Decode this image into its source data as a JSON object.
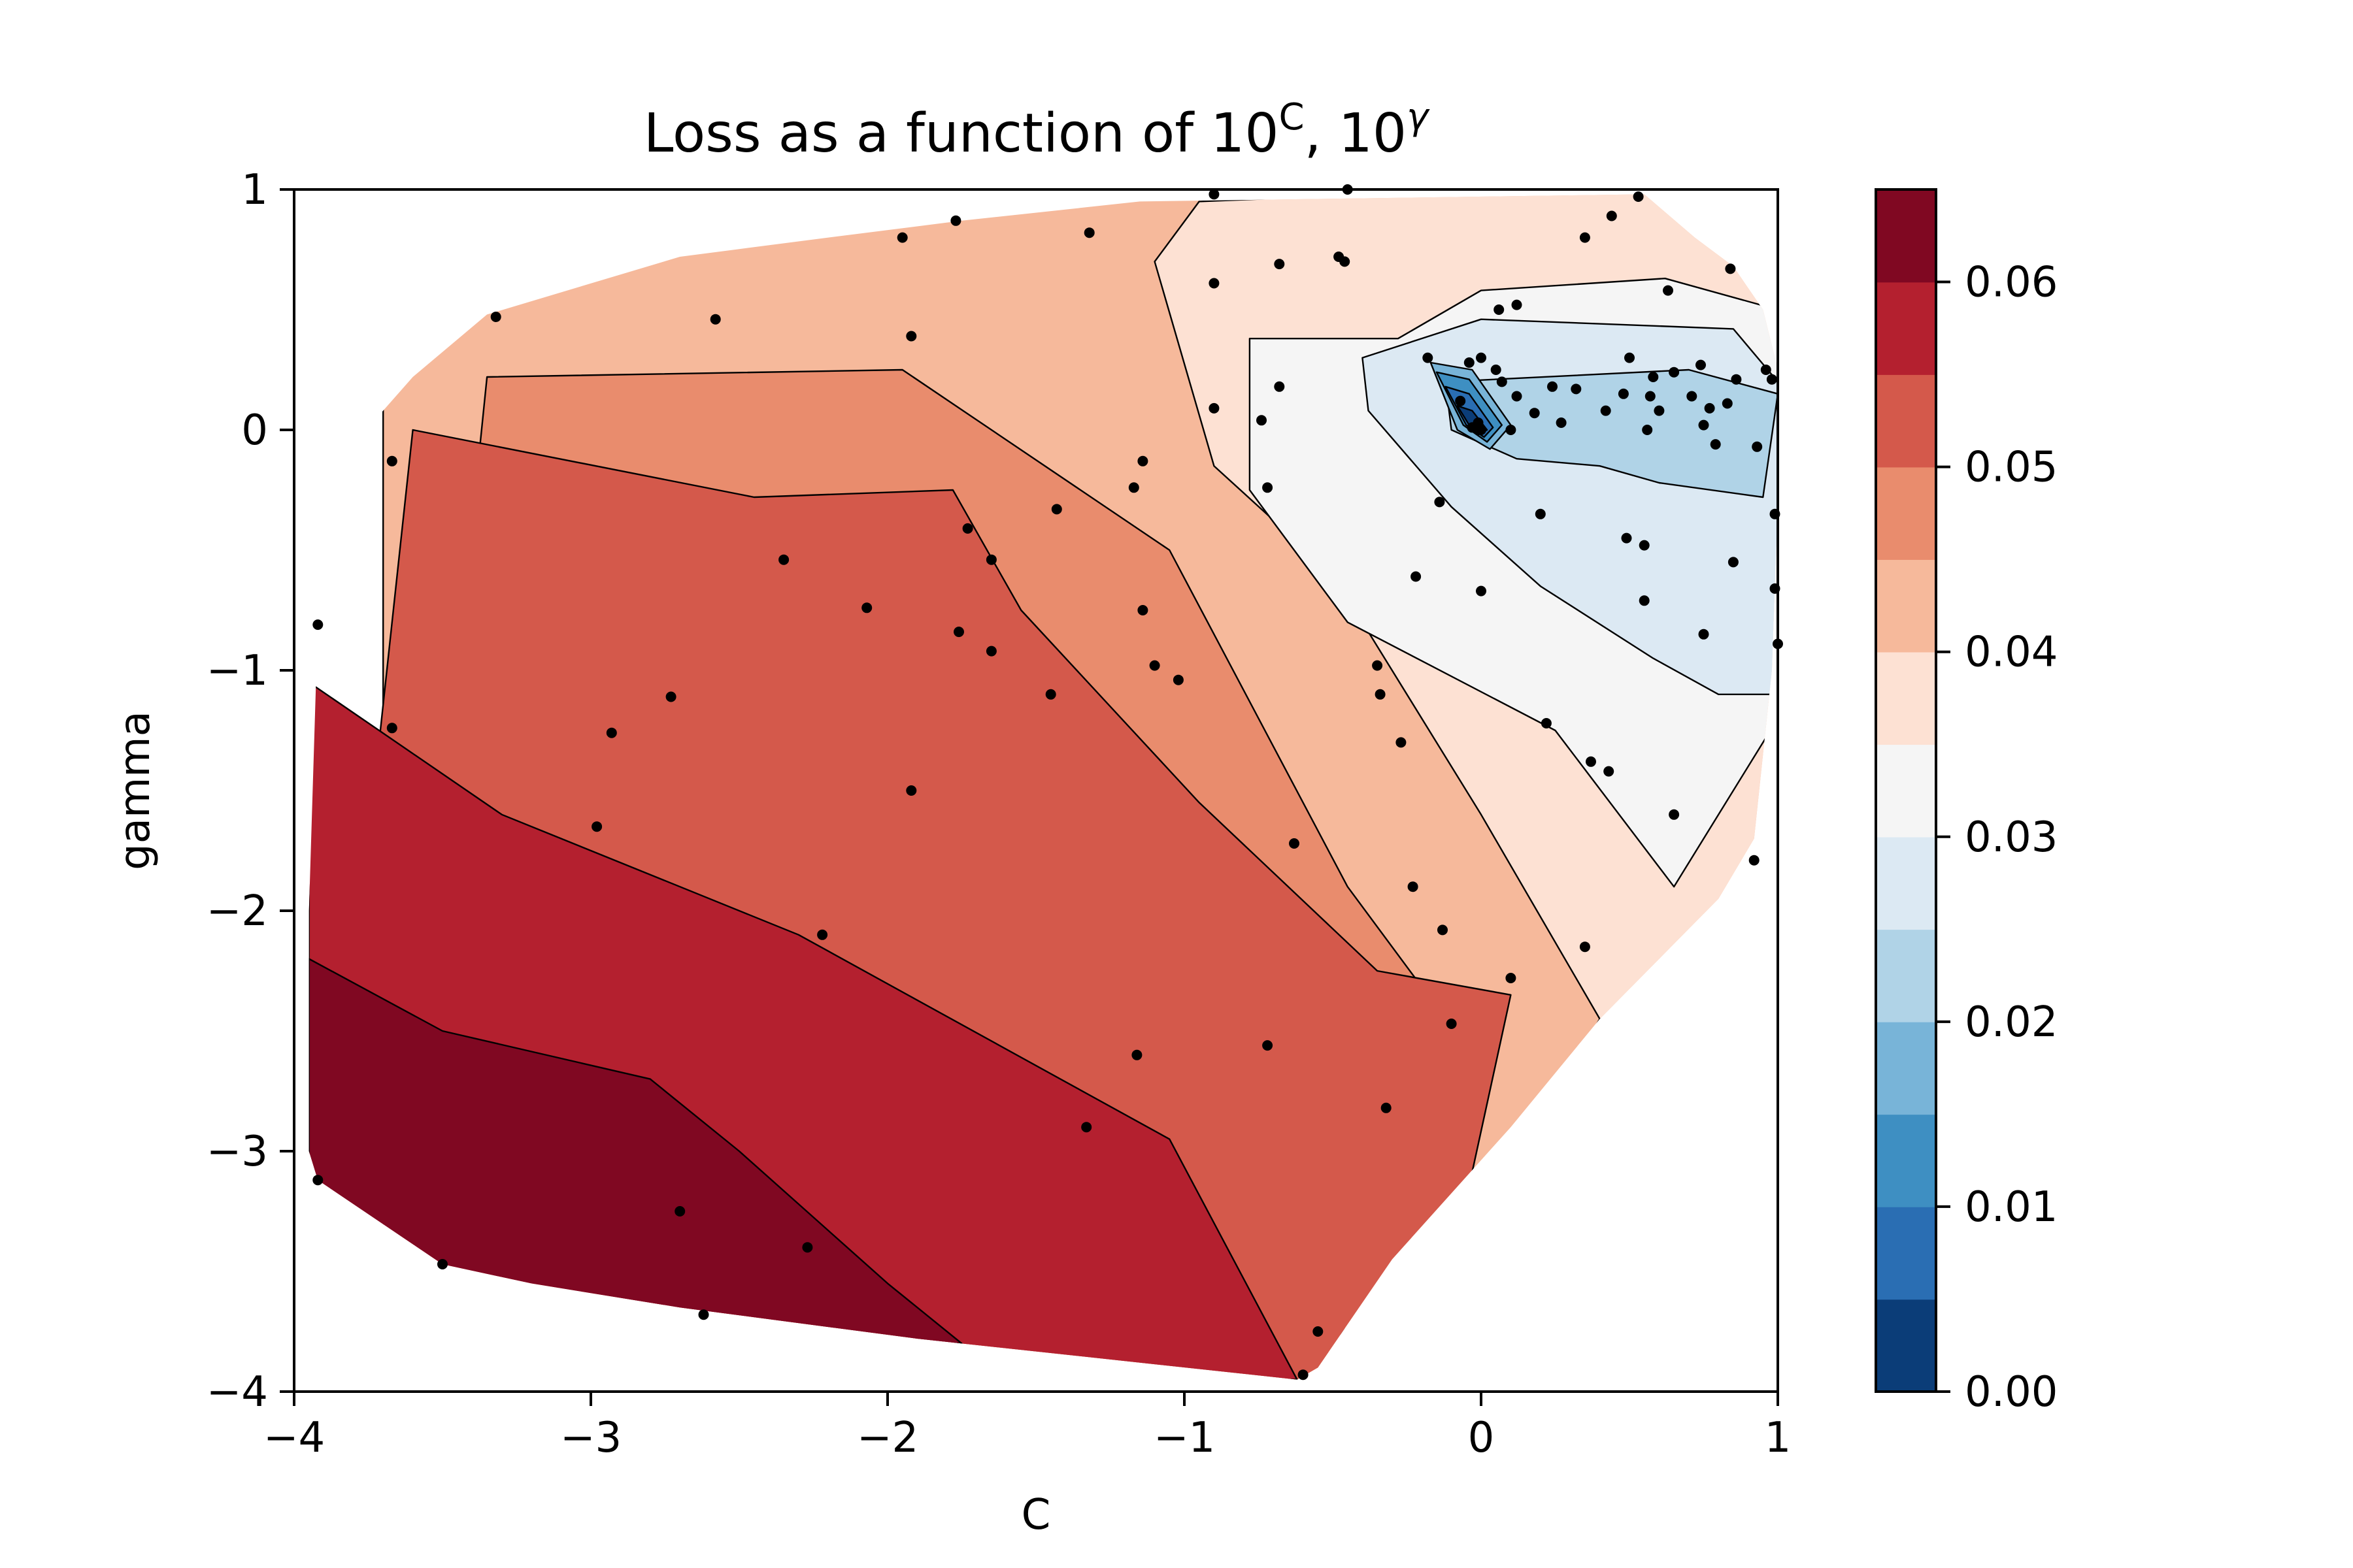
{
  "chart_data": {
    "type": "contourf",
    "title": "Loss as a function of 10",
    "title_sup_1": "C",
    "title_sep": ", 10",
    "title_sup_2": "γ",
    "xlabel": "C",
    "ylabel": "gamma",
    "xlim": [
      -4,
      1
    ],
    "ylim": [
      -4,
      1
    ],
    "x_ticks": [
      -4,
      -3,
      -2,
      -1,
      0,
      1
    ],
    "x_tick_labels": [
      "−4",
      "−3",
      "−2",
      "−1",
      "0",
      "1"
    ],
    "y_ticks": [
      -4,
      -3,
      -2,
      -1,
      0,
      1
    ],
    "y_tick_labels": [
      "−4",
      "−3",
      "−2",
      "−1",
      "0",
      "1"
    ],
    "colorbar": {
      "min": 0.0,
      "max": 0.065,
      "levels": [
        0.0,
        0.005,
        0.01,
        0.015,
        0.02,
        0.025,
        0.03,
        0.035,
        0.04,
        0.045,
        0.05,
        0.055,
        0.06,
        0.065
      ],
      "colors": [
        "#0b3d78",
        "#2a6eb3",
        "#3e8fc2",
        "#78b4d8",
        "#b0d3e7",
        "#dce9f3",
        "#f5f5f5",
        "#fde1d3",
        "#f6b99b",
        "#e98c6d",
        "#d4594b",
        "#b4202f",
        "#800822"
      ],
      "tick_values": [
        0.0,
        0.01,
        0.02,
        0.03,
        0.04,
        0.05,
        0.06
      ],
      "tick_labels": [
        "0.00",
        "0.01",
        "0.02",
        "0.03",
        "0.04",
        "0.05",
        "0.06"
      ]
    },
    "grid": false,
    "regions": [
      {
        "level_index": 8,
        "points": [
          [
            -3.7,
            -4
          ],
          [
            -3.7,
            1
          ],
          [
            1,
            1
          ],
          [
            1,
            -4
          ]
        ]
      },
      {
        "level_index": 7,
        "points": [
          [
            -0.95,
            0.95
          ],
          [
            0.05,
            1.0
          ],
          [
            1,
            1
          ],
          [
            1,
            -4
          ],
          [
            -0.35,
            -4
          ],
          [
            0.4,
            -2.45
          ],
          [
            0.0,
            -1.6
          ],
          [
            -0.5,
            -0.6
          ],
          [
            -0.9,
            -0.15
          ],
          [
            -1.1,
            0.7
          ]
        ]
      },
      {
        "level_index": 6,
        "points": [
          [
            -0.28,
            0.38
          ],
          [
            0.0,
            0.58
          ],
          [
            0.62,
            0.63
          ],
          [
            1.0,
            0.5
          ],
          [
            1.0,
            -1.2
          ],
          [
            0.65,
            -1.9
          ],
          [
            0.25,
            -1.25
          ],
          [
            -0.45,
            -0.8
          ],
          [
            -0.78,
            -0.25
          ],
          [
            -0.78,
            0.38
          ]
        ]
      },
      {
        "level_index": 5,
        "points": [
          [
            -0.4,
            0.3
          ],
          [
            0.0,
            0.46
          ],
          [
            0.85,
            0.42
          ],
          [
            1.0,
            0.2
          ],
          [
            1.0,
            -1.1
          ],
          [
            0.8,
            -1.1
          ],
          [
            0.58,
            -0.95
          ],
          [
            0.2,
            -0.65
          ],
          [
            -0.1,
            -0.32
          ],
          [
            -0.38,
            0.08
          ]
        ]
      },
      {
        "level_index": 4,
        "points": [
          [
            -0.12,
            0.2
          ],
          [
            0.7,
            0.25
          ],
          [
            1.0,
            0.15
          ],
          [
            0.95,
            -0.28
          ],
          [
            0.6,
            -0.22
          ],
          [
            0.4,
            -0.15
          ],
          [
            0.12,
            -0.12
          ],
          [
            -0.1,
            0.0
          ]
        ]
      },
      {
        "level_index": 3,
        "points": [
          [
            -0.17,
            0.28
          ],
          [
            -0.03,
            0.25
          ],
          [
            0.1,
            0.02
          ],
          [
            0.03,
            -0.08
          ],
          [
            -0.08,
            0.0
          ]
        ]
      },
      {
        "level_index": 2,
        "points": [
          [
            -0.15,
            0.24
          ],
          [
            -0.04,
            0.21
          ],
          [
            0.07,
            0.02
          ],
          [
            0.02,
            -0.05
          ],
          [
            -0.06,
            0.02
          ]
        ]
      },
      {
        "level_index": 1,
        "points": [
          [
            -0.12,
            0.18
          ],
          [
            -0.04,
            0.15
          ],
          [
            0.04,
            0.01
          ],
          [
            0.01,
            -0.03
          ],
          [
            -0.05,
            0.02
          ]
        ]
      },
      {
        "level_index": 0,
        "points": [
          [
            -0.08,
            0.1
          ],
          [
            -0.03,
            0.08
          ],
          [
            0.02,
            0.0
          ],
          [
            -0.01,
            -0.02
          ],
          [
            -0.04,
            0.02
          ]
        ]
      },
      {
        "level_index": 9,
        "points": [
          [
            -3.35,
            0.22
          ],
          [
            -1.95,
            0.25
          ],
          [
            -1.05,
            -0.5
          ],
          [
            -0.45,
            -1.9
          ],
          [
            -0.15,
            -2.4
          ],
          [
            -0.45,
            -3.7
          ],
          [
            -0.55,
            -4
          ],
          [
            -3.7,
            -4
          ]
        ]
      },
      {
        "level_index": 10,
        "points": [
          [
            -3.6,
            0.0
          ],
          [
            -2.45,
            -0.28
          ],
          [
            -1.78,
            -0.25
          ],
          [
            -1.55,
            -0.75
          ],
          [
            -0.95,
            -1.55
          ],
          [
            -0.35,
            -2.25
          ],
          [
            0.1,
            -2.35
          ],
          [
            -0.05,
            -3.2
          ],
          [
            -0.3,
            -3.65
          ],
          [
            -0.6,
            -4
          ],
          [
            -3.95,
            -4
          ]
        ]
      },
      {
        "level_index": 11,
        "points": [
          [
            -3.95,
            -1.05
          ],
          [
            -3.3,
            -1.6
          ],
          [
            -2.3,
            -2.1
          ],
          [
            -1.05,
            -2.95
          ],
          [
            -0.62,
            -3.95
          ],
          [
            -3.95,
            -3.95
          ]
        ]
      },
      {
        "level_index": 12,
        "points": [
          [
            -3.95,
            -2.2
          ],
          [
            -3.5,
            -2.5
          ],
          [
            -2.8,
            -2.7
          ],
          [
            -2.5,
            -3.0
          ],
          [
            -2.0,
            -3.55
          ],
          [
            -1.75,
            -3.8
          ],
          [
            -3.95,
            -3.8
          ],
          [
            -3.95,
            -3.1
          ]
        ]
      }
    ],
    "hull": [
      [
        -3.92,
        -3.12
      ],
      [
        -3.5,
        -3.47
      ],
      [
        -3.2,
        -3.55
      ],
      [
        -2.7,
        -3.65
      ],
      [
        -1.9,
        -3.78
      ],
      [
        -0.62,
        -3.95
      ],
      [
        -0.55,
        -3.9
      ],
      [
        -0.3,
        -3.45
      ],
      [
        0.1,
        -2.9
      ],
      [
        0.4,
        -2.45
      ],
      [
        0.8,
        -1.95
      ],
      [
        0.92,
        -1.7
      ],
      [
        0.98,
        -1.0
      ],
      [
        1.0,
        -0.3
      ],
      [
        1.0,
        0.25
      ],
      [
        0.95,
        0.5
      ],
      [
        0.85,
        0.68
      ],
      [
        0.72,
        0.8
      ],
      [
        0.55,
        0.98
      ],
      [
        -1.15,
        0.95
      ],
      [
        -1.75,
        0.87
      ],
      [
        -2.2,
        0.8
      ],
      [
        -2.7,
        0.72
      ],
      [
        -3.35,
        0.48
      ],
      [
        -3.6,
        0.22
      ],
      [
        -3.9,
        -0.2
      ],
      [
        -3.92,
        -0.8
      ],
      [
        -3.95,
        -2.0
      ],
      [
        -3.95,
        -3.0
      ]
    ],
    "sample_points": [
      [
        -3.92,
        -3.12
      ],
      [
        -3.5,
        -3.47
      ],
      [
        -2.62,
        -3.68
      ],
      [
        -2.7,
        -3.25
      ],
      [
        -2.27,
        -3.4
      ],
      [
        -0.6,
        -3.93
      ],
      [
        -0.55,
        -3.75
      ],
      [
        -1.33,
        -2.9
      ],
      [
        -0.32,
        -2.82
      ],
      [
        -1.16,
        -2.6
      ],
      [
        -0.72,
        -2.56
      ],
      [
        -0.1,
        -2.47
      ],
      [
        0.1,
        -2.28
      ],
      [
        0.35,
        -2.15
      ],
      [
        -0.13,
        -2.08
      ],
      [
        -0.23,
        -1.9
      ],
      [
        -0.63,
        -1.72
      ],
      [
        -2.22,
        -2.1
      ],
      [
        -1.92,
        -1.5
      ],
      [
        -2.98,
        -1.65
      ],
      [
        -2.93,
        -1.26
      ],
      [
        -3.67,
        -1.24
      ],
      [
        -3.92,
        -0.81
      ],
      [
        -2.73,
        -1.11
      ],
      [
        -1.45,
        -1.1
      ],
      [
        -1.1,
        -0.98
      ],
      [
        -1.02,
        -1.04
      ],
      [
        -0.35,
        -0.98
      ],
      [
        -0.34,
        -1.1
      ],
      [
        -0.27,
        -1.3
      ],
      [
        0.22,
        -1.22
      ],
      [
        0.37,
        -1.38
      ],
      [
        0.43,
        -1.42
      ],
      [
        0.65,
        -1.6
      ],
      [
        0.92,
        -1.79
      ],
      [
        -1.76,
        -0.84
      ],
      [
        -1.65,
        -0.92
      ],
      [
        -2.07,
        -0.74
      ],
      [
        -2.35,
        -0.54
      ],
      [
        -1.73,
        -0.41
      ],
      [
        -1.65,
        -0.54
      ],
      [
        -1.43,
        -0.33
      ],
      [
        -1.14,
        -0.75
      ],
      [
        -3.67,
        -0.13
      ],
      [
        -3.32,
        0.47
      ],
      [
        -2.58,
        0.46
      ],
      [
        -1.92,
        0.39
      ],
      [
        -1.95,
        0.8
      ],
      [
        -1.77,
        0.87
      ],
      [
        -1.32,
        0.82
      ],
      [
        -0.9,
        0.09
      ],
      [
        -0.74,
        0.04
      ],
      [
        -0.72,
        -0.24
      ],
      [
        -1.14,
        -0.13
      ],
      [
        -1.17,
        -0.24
      ],
      [
        -0.9,
        0.61
      ],
      [
        -0.68,
        0.69
      ],
      [
        -0.48,
        0.72
      ],
      [
        -0.46,
        0.7
      ],
      [
        -0.9,
        0.98
      ],
      [
        -0.45,
        1.0
      ],
      [
        0.53,
        0.97
      ],
      [
        0.35,
        0.8
      ],
      [
        0.44,
        0.89
      ],
      [
        0.84,
        0.67
      ],
      [
        0.63,
        0.58
      ],
      [
        0.06,
        0.5
      ],
      [
        0.12,
        0.52
      ],
      [
        -0.68,
        0.18
      ],
      [
        -0.22,
        -0.61
      ],
      [
        -0.14,
        -0.3
      ],
      [
        0.0,
        -0.67
      ],
      [
        0.2,
        -0.35
      ],
      [
        0.49,
        -0.45
      ],
      [
        0.55,
        -0.71
      ],
      [
        0.75,
        -0.85
      ],
      [
        0.85,
        -0.55
      ],
      [
        0.99,
        -0.35
      ],
      [
        0.99,
        -0.66
      ],
      [
        1.0,
        -0.89
      ],
      [
        0.55,
        -0.48
      ],
      [
        0.5,
        0.3
      ],
      [
        0.58,
        0.22
      ],
      [
        0.65,
        0.24
      ],
      [
        0.74,
        0.27
      ],
      [
        0.86,
        0.21
      ],
      [
        0.96,
        0.25
      ],
      [
        0.98,
        0.21
      ],
      [
        -0.18,
        0.3
      ],
      [
        -0.04,
        0.28
      ],
      [
        0.0,
        0.3
      ],
      [
        0.05,
        0.25
      ],
      [
        -0.07,
        0.12
      ],
      [
        0.07,
        0.2
      ],
      [
        0.12,
        0.14
      ],
      [
        0.24,
        0.18
      ],
      [
        0.32,
        0.17
      ],
      [
        0.48,
        0.15
      ],
      [
        0.57,
        0.14
      ],
      [
        0.6,
        0.08
      ],
      [
        0.71,
        0.14
      ],
      [
        0.77,
        0.09
      ],
      [
        0.83,
        0.11
      ],
      [
        -0.03,
        0.01
      ],
      [
        -0.01,
        0.03
      ],
      [
        0.0,
        0.0
      ],
      [
        0.1,
        0.0
      ],
      [
        0.18,
        0.07
      ],
      [
        0.27,
        0.03
      ],
      [
        0.42,
        0.08
      ],
      [
        0.56,
        0.0
      ],
      [
        0.75,
        0.02
      ],
      [
        0.79,
        -0.06
      ],
      [
        0.93,
        -0.07
      ]
    ]
  }
}
